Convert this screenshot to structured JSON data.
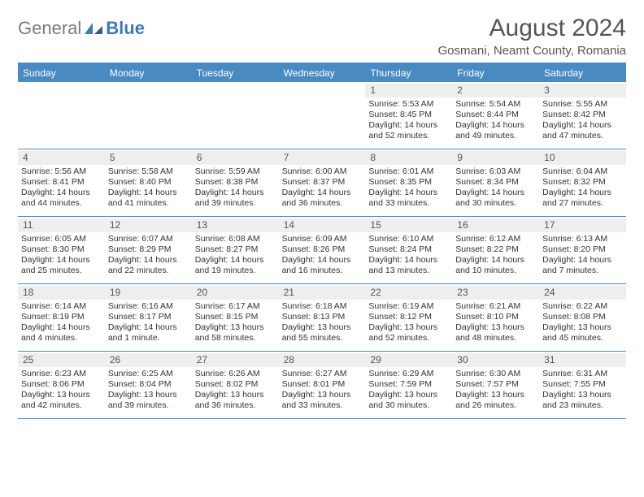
{
  "brand": {
    "general": "General",
    "blue": "Blue"
  },
  "title": "August 2024",
  "location": "Gosmani, Neamt County, Romania",
  "colors": {
    "header_bg": "#4a8ac2",
    "header_text": "#ffffff",
    "daynum_bg": "#eeeeee",
    "text": "#333333",
    "brand_gray": "#7a7a7a",
    "brand_blue": "#3a7ab8"
  },
  "day_labels": [
    "Sunday",
    "Monday",
    "Tuesday",
    "Wednesday",
    "Thursday",
    "Friday",
    "Saturday"
  ],
  "weeks": [
    [
      {
        "empty": true
      },
      {
        "empty": true
      },
      {
        "empty": true
      },
      {
        "empty": true
      },
      {
        "day": "1",
        "sunrise": "Sunrise: 5:53 AM",
        "sunset": "Sunset: 8:45 PM",
        "daylight": "Daylight: 14 hours and 52 minutes."
      },
      {
        "day": "2",
        "sunrise": "Sunrise: 5:54 AM",
        "sunset": "Sunset: 8:44 PM",
        "daylight": "Daylight: 14 hours and 49 minutes."
      },
      {
        "day": "3",
        "sunrise": "Sunrise: 5:55 AM",
        "sunset": "Sunset: 8:42 PM",
        "daylight": "Daylight: 14 hours and 47 minutes."
      }
    ],
    [
      {
        "day": "4",
        "sunrise": "Sunrise: 5:56 AM",
        "sunset": "Sunset: 8:41 PM",
        "daylight": "Daylight: 14 hours and 44 minutes."
      },
      {
        "day": "5",
        "sunrise": "Sunrise: 5:58 AM",
        "sunset": "Sunset: 8:40 PM",
        "daylight": "Daylight: 14 hours and 41 minutes."
      },
      {
        "day": "6",
        "sunrise": "Sunrise: 5:59 AM",
        "sunset": "Sunset: 8:38 PM",
        "daylight": "Daylight: 14 hours and 39 minutes."
      },
      {
        "day": "7",
        "sunrise": "Sunrise: 6:00 AM",
        "sunset": "Sunset: 8:37 PM",
        "daylight": "Daylight: 14 hours and 36 minutes."
      },
      {
        "day": "8",
        "sunrise": "Sunrise: 6:01 AM",
        "sunset": "Sunset: 8:35 PM",
        "daylight": "Daylight: 14 hours and 33 minutes."
      },
      {
        "day": "9",
        "sunrise": "Sunrise: 6:03 AM",
        "sunset": "Sunset: 8:34 PM",
        "daylight": "Daylight: 14 hours and 30 minutes."
      },
      {
        "day": "10",
        "sunrise": "Sunrise: 6:04 AM",
        "sunset": "Sunset: 8:32 PM",
        "daylight": "Daylight: 14 hours and 27 minutes."
      }
    ],
    [
      {
        "day": "11",
        "sunrise": "Sunrise: 6:05 AM",
        "sunset": "Sunset: 8:30 PM",
        "daylight": "Daylight: 14 hours and 25 minutes."
      },
      {
        "day": "12",
        "sunrise": "Sunrise: 6:07 AM",
        "sunset": "Sunset: 8:29 PM",
        "daylight": "Daylight: 14 hours and 22 minutes."
      },
      {
        "day": "13",
        "sunrise": "Sunrise: 6:08 AM",
        "sunset": "Sunset: 8:27 PM",
        "daylight": "Daylight: 14 hours and 19 minutes."
      },
      {
        "day": "14",
        "sunrise": "Sunrise: 6:09 AM",
        "sunset": "Sunset: 8:26 PM",
        "daylight": "Daylight: 14 hours and 16 minutes."
      },
      {
        "day": "15",
        "sunrise": "Sunrise: 6:10 AM",
        "sunset": "Sunset: 8:24 PM",
        "daylight": "Daylight: 14 hours and 13 minutes."
      },
      {
        "day": "16",
        "sunrise": "Sunrise: 6:12 AM",
        "sunset": "Sunset: 8:22 PM",
        "daylight": "Daylight: 14 hours and 10 minutes."
      },
      {
        "day": "17",
        "sunrise": "Sunrise: 6:13 AM",
        "sunset": "Sunset: 8:20 PM",
        "daylight": "Daylight: 14 hours and 7 minutes."
      }
    ],
    [
      {
        "day": "18",
        "sunrise": "Sunrise: 6:14 AM",
        "sunset": "Sunset: 8:19 PM",
        "daylight": "Daylight: 14 hours and 4 minutes."
      },
      {
        "day": "19",
        "sunrise": "Sunrise: 6:16 AM",
        "sunset": "Sunset: 8:17 PM",
        "daylight": "Daylight: 14 hours and 1 minute."
      },
      {
        "day": "20",
        "sunrise": "Sunrise: 6:17 AM",
        "sunset": "Sunset: 8:15 PM",
        "daylight": "Daylight: 13 hours and 58 minutes."
      },
      {
        "day": "21",
        "sunrise": "Sunrise: 6:18 AM",
        "sunset": "Sunset: 8:13 PM",
        "daylight": "Daylight: 13 hours and 55 minutes."
      },
      {
        "day": "22",
        "sunrise": "Sunrise: 6:19 AM",
        "sunset": "Sunset: 8:12 PM",
        "daylight": "Daylight: 13 hours and 52 minutes."
      },
      {
        "day": "23",
        "sunrise": "Sunrise: 6:21 AM",
        "sunset": "Sunset: 8:10 PM",
        "daylight": "Daylight: 13 hours and 48 minutes."
      },
      {
        "day": "24",
        "sunrise": "Sunrise: 6:22 AM",
        "sunset": "Sunset: 8:08 PM",
        "daylight": "Daylight: 13 hours and 45 minutes."
      }
    ],
    [
      {
        "day": "25",
        "sunrise": "Sunrise: 6:23 AM",
        "sunset": "Sunset: 8:06 PM",
        "daylight": "Daylight: 13 hours and 42 minutes."
      },
      {
        "day": "26",
        "sunrise": "Sunrise: 6:25 AM",
        "sunset": "Sunset: 8:04 PM",
        "daylight": "Daylight: 13 hours and 39 minutes."
      },
      {
        "day": "27",
        "sunrise": "Sunrise: 6:26 AM",
        "sunset": "Sunset: 8:02 PM",
        "daylight": "Daylight: 13 hours and 36 minutes."
      },
      {
        "day": "28",
        "sunrise": "Sunrise: 6:27 AM",
        "sunset": "Sunset: 8:01 PM",
        "daylight": "Daylight: 13 hours and 33 minutes."
      },
      {
        "day": "29",
        "sunrise": "Sunrise: 6:29 AM",
        "sunset": "Sunset: 7:59 PM",
        "daylight": "Daylight: 13 hours and 30 minutes."
      },
      {
        "day": "30",
        "sunrise": "Sunrise: 6:30 AM",
        "sunset": "Sunset: 7:57 PM",
        "daylight": "Daylight: 13 hours and 26 minutes."
      },
      {
        "day": "31",
        "sunrise": "Sunrise: 6:31 AM",
        "sunset": "Sunset: 7:55 PM",
        "daylight": "Daylight: 13 hours and 23 minutes."
      }
    ]
  ]
}
